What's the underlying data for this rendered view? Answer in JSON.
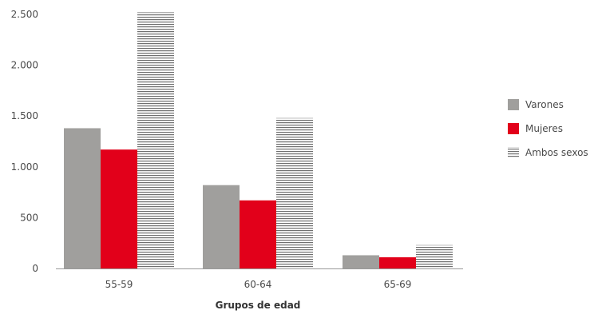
{
  "chart_data": {
    "type": "bar",
    "categories": [
      "55-59",
      "60-64",
      "65-69"
    ],
    "series": [
      {
        "name": "Varones",
        "values": [
          1380,
          820,
          130
        ]
      },
      {
        "name": "Mujeres",
        "values": [
          1170,
          670,
          110
        ]
      },
      {
        "name": "Ambos sexos",
        "values": [
          2520,
          1480,
          230
        ]
      }
    ],
    "xlabel": "Grupos de edad",
    "ylabel": "",
    "ylim": [
      0,
      2500
    ],
    "yticks": [
      0,
      500,
      1000,
      1500,
      2000,
      2500
    ],
    "ytick_labels": [
      "0",
      "500",
      "1.000",
      "1.500",
      "2.000",
      "2.500"
    ],
    "grid": false,
    "legend_position": "right",
    "colors": {
      "Varones": "#a09f9d",
      "Mujeres": "#e2001a",
      "Ambos sexos": "#6f6f6f"
    },
    "patterns": {
      "Ambos sexos": "horizontal-stripes"
    }
  }
}
